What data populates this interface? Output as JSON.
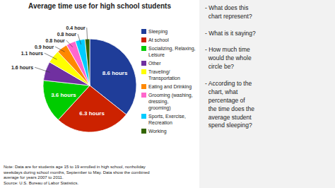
{
  "chart_data": {
    "type": "pie",
    "title": "Average time use for high school students",
    "categories": [
      "Sleeping",
      "At school",
      "Socializing, Relaxing, Leisure",
      "Other",
      "Traveling/ Transportation",
      "Eating and Drinking",
      "Grooming (washing, dressing,\ngrooming)",
      "Sports, Exercise, Recreation",
      "Working"
    ],
    "values": [
      8.6,
      6.3,
      3.6,
      1.6,
      1.1,
      0.9,
      0.8,
      0.8,
      0.4
    ],
    "colors": [
      "#1f3d99",
      "#cc2200",
      "#00cc00",
      "#7030a0",
      "#ffff00",
      "#ff8800",
      "#ff66cc",
      "#00ccff",
      "#336600"
    ],
    "data_labels": true,
    "value_labels": [
      "8.6 hours",
      "6.3 hours",
      "3.6 hours",
      "1.6 hours",
      "1.1 hours",
      "0.9 hour",
      "0.8 hour",
      "0.8 hour",
      "0.4 hour"
    ],
    "legend": "right",
    "annotations": [
      "Note: Data are for students age 15 to 19 enrolled in high school, nonholiday\nweekdays during school months, September to May. Data show the combined\naverage for years 2007 to 2011.\nSource: U.S. Bureau of Labor Statistics.",
      "- What does this\n  chart represent?\n\n- What is it saying?\n\n- How much time\n  would the whole\n  circle be?\n\n- According to the\n  chart, what\n  percentage of\n  the time does the\n  average student\n  spend sleeping?"
    ]
  }
}
